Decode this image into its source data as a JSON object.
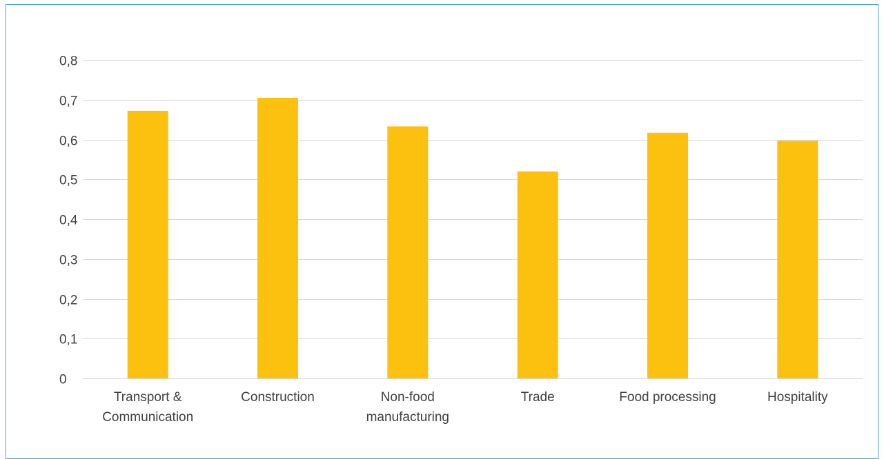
{
  "chart_data": {
    "type": "bar",
    "categories": [
      [
        "Transport &",
        "Communication"
      ],
      [
        "Construction"
      ],
      [
        "Non-food",
        "manufacturing"
      ],
      [
        "Trade"
      ],
      [
        "Food processing"
      ],
      [
        "Hospitality"
      ]
    ],
    "values": [
      0.672,
      0.705,
      0.633,
      0.52,
      0.617,
      0.597
    ],
    "ylim": [
      0,
      0.8
    ],
    "yticks": [
      "0",
      "0,1",
      "0,2",
      "0,3",
      "0,4",
      "0,5",
      "0,6",
      "0,7",
      "0,8"
    ],
    "ytick_values": [
      0,
      0.1,
      0.2,
      0.3,
      0.4,
      0.5,
      0.6,
      0.7,
      0.8
    ],
    "grid": true,
    "title": "",
    "xlabel": "",
    "ylabel": "",
    "colors": {
      "bar": "#fcc10f",
      "frame": "#4aa3c4",
      "grid": "#d9d9d9",
      "text": "#404040"
    }
  }
}
